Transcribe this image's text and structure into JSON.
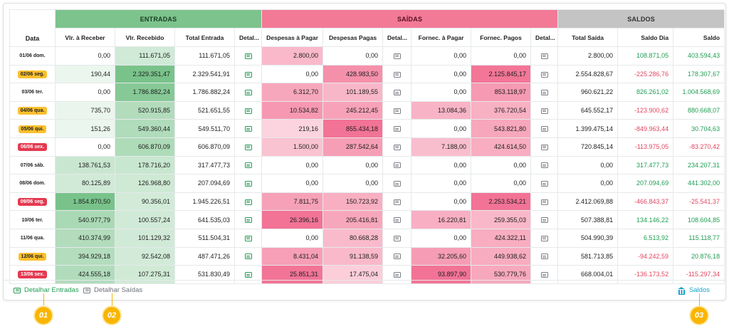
{
  "groups": {
    "entradas": "ENTRADAS",
    "saidas": "SAÍDAS",
    "saldos": "SALDOS"
  },
  "columns": {
    "data": "Data",
    "vlr_receber": "Vlr. à Receber",
    "vlr_recebido": "Vlr. Recebido",
    "total_entrada": "Total Entrada",
    "detal_ent": "Detal...",
    "desp_pagar": "Despesas à Pagar",
    "desp_pagas": "Despesas Pagas",
    "detal_sai": "Detal...",
    "forn_pagar": "Fornec. à Pagar",
    "forn_pagos": "Fornec. Pagos",
    "detal_forn": "Detal...",
    "total_saida": "Total Saída",
    "saldo_dia": "Saldo Dia",
    "saldo": "Saldo"
  },
  "rows": [
    {
      "date": "01/06 dom.",
      "date_style": "plain",
      "vlr_receber": "0,00",
      "vlr_recebido": "111.671,05",
      "total_entrada": "111.671,05",
      "desp_pagar": "2.800,00",
      "desp_pagas": "0,00",
      "forn_pagar": "0,00",
      "forn_pagos": "0,00",
      "total_saida": "2.800,00",
      "saldo_dia": "108.871,05",
      "saldo": "403.594,43",
      "saldo_dia_sign": "pos",
      "saldo_sign": "pos"
    },
    {
      "date": "02/06 seg.",
      "date_style": "yellow",
      "vlr_receber": "190,44",
      "vlr_recebido": "2.329.351,47",
      "total_entrada": "2.329.541,91",
      "desp_pagar": "0,00",
      "desp_pagas": "428.983,50",
      "forn_pagar": "0,00",
      "forn_pagos": "2.125.845,17",
      "total_saida": "2.554.828,67",
      "saldo_dia": "-225.286,76",
      "saldo": "178.307,67",
      "saldo_dia_sign": "neg",
      "saldo_sign": "pos"
    },
    {
      "date": "03/06 ter.",
      "date_style": "plain",
      "vlr_receber": "0,00",
      "vlr_recebido": "1.786.882,24",
      "total_entrada": "1.786.882,24",
      "desp_pagar": "6.312,70",
      "desp_pagas": "101.189,55",
      "forn_pagar": "0,00",
      "forn_pagos": "853.118,97",
      "total_saida": "960.621,22",
      "saldo_dia": "826.261,02",
      "saldo": "1.004.568,69",
      "saldo_dia_sign": "pos",
      "saldo_sign": "pos"
    },
    {
      "date": "04/06 qua.",
      "date_style": "yellow",
      "vlr_receber": "735,70",
      "vlr_recebido": "520.915,85",
      "total_entrada": "521.651,55",
      "desp_pagar": "10.534,82",
      "desp_pagas": "245.212,45",
      "forn_pagar": "13.084,36",
      "forn_pagos": "376.720,54",
      "total_saida": "645.552,17",
      "saldo_dia": "-123.900,62",
      "saldo": "880.668,07",
      "saldo_dia_sign": "neg",
      "saldo_sign": "pos"
    },
    {
      "date": "05/06 qui.",
      "date_style": "yellow",
      "vlr_receber": "151,26",
      "vlr_recebido": "549.360,44",
      "total_entrada": "549.511,70",
      "desp_pagar": "219,16",
      "desp_pagas": "855.434,18",
      "forn_pagar": "0,00",
      "forn_pagos": "543.821,80",
      "total_saida": "1.399.475,14",
      "saldo_dia": "-849.963,44",
      "saldo": "30.704,63",
      "saldo_dia_sign": "neg",
      "saldo_sign": "pos"
    },
    {
      "date": "06/06 sex.",
      "date_style": "red",
      "vlr_receber": "0,00",
      "vlr_recebido": "606.870,09",
      "total_entrada": "606.870,09",
      "desp_pagar": "1.500,00",
      "desp_pagas": "287.542,64",
      "forn_pagar": "7.188,00",
      "forn_pagos": "424.614,50",
      "total_saida": "720.845,14",
      "saldo_dia": "-113.975,05",
      "saldo": "-83.270,42",
      "saldo_dia_sign": "neg",
      "saldo_sign": "neg"
    },
    {
      "date": "07/06 sáb.",
      "date_style": "plain",
      "vlr_receber": "138.761,53",
      "vlr_recebido": "178.716,20",
      "total_entrada": "317.477,73",
      "desp_pagar": "0,00",
      "desp_pagas": "0,00",
      "forn_pagar": "0,00",
      "forn_pagos": "0,00",
      "total_saida": "0,00",
      "saldo_dia": "317.477,73",
      "saldo": "234.207,31",
      "saldo_dia_sign": "pos",
      "saldo_sign": "pos"
    },
    {
      "date": "08/06 dom.",
      "date_style": "plain",
      "vlr_receber": "80.125,89",
      "vlr_recebido": "126.968,80",
      "total_entrada": "207.094,69",
      "desp_pagar": "0,00",
      "desp_pagas": "0,00",
      "forn_pagar": "0,00",
      "forn_pagos": "0,00",
      "total_saida": "0,00",
      "saldo_dia": "207.094,69",
      "saldo": "441.302,00",
      "saldo_dia_sign": "pos",
      "saldo_sign": "pos"
    },
    {
      "date": "09/06 seg.",
      "date_style": "red",
      "vlr_receber": "1.854.870,50",
      "vlr_recebido": "90.356,01",
      "total_entrada": "1.945.226,51",
      "desp_pagar": "7.811,75",
      "desp_pagas": "150.723,92",
      "forn_pagar": "0,00",
      "forn_pagos": "2.253.534,21",
      "total_saida": "2.412.069,88",
      "saldo_dia": "-466.843,37",
      "saldo": "-25.541,37",
      "saldo_dia_sign": "neg",
      "saldo_sign": "neg"
    },
    {
      "date": "10/06 ter.",
      "date_style": "plain",
      "vlr_receber": "540.977,79",
      "vlr_recebido": "100.557,24",
      "total_entrada": "641.535,03",
      "desp_pagar": "26.396,16",
      "desp_pagas": "205.416,81",
      "forn_pagar": "16.220,81",
      "forn_pagos": "259.355,03",
      "total_saida": "507.388,81",
      "saldo_dia": "134.146,22",
      "saldo": "108.604,85",
      "saldo_dia_sign": "pos",
      "saldo_sign": "pos"
    },
    {
      "date": "11/06 qua.",
      "date_style": "plain",
      "vlr_receber": "410.374,99",
      "vlr_recebido": "101.129,32",
      "total_entrada": "511.504,31",
      "desp_pagar": "0,00",
      "desp_pagas": "80.668,28",
      "forn_pagar": "0,00",
      "forn_pagos": "424.322,11",
      "total_saida": "504.990,39",
      "saldo_dia": "6.513,92",
      "saldo": "115.118,77",
      "saldo_dia_sign": "pos",
      "saldo_sign": "pos"
    },
    {
      "date": "12/06 qui.",
      "date_style": "yellow",
      "vlr_receber": "394.929,18",
      "vlr_recebido": "92.542,08",
      "total_entrada": "487.471,26",
      "desp_pagar": "8.431,04",
      "desp_pagas": "91.138,59",
      "forn_pagar": "32.205,60",
      "forn_pagos": "449.938,62",
      "total_saida": "581.713,85",
      "saldo_dia": "-94.242,59",
      "saldo": "20.876,18",
      "saldo_dia_sign": "neg",
      "saldo_sign": "pos"
    },
    {
      "date": "13/06 sex.",
      "date_style": "red",
      "vlr_receber": "424.555,18",
      "vlr_recebido": "107.275,31",
      "total_entrada": "531.830,49",
      "desp_pagar": "25.851,31",
      "desp_pagas": "17.475,04",
      "forn_pagar": "93.897,90",
      "forn_pagos": "530.779,76",
      "total_saida": "668.004,01",
      "saldo_dia": "-136.173,52",
      "saldo": "-115.297,34",
      "saldo_dia_sign": "neg",
      "saldo_sign": "neg"
    }
  ],
  "footer": {
    "detalhar_entradas": "Detalhar Entradas",
    "detalhar_saidas": "Detalhar Saídas",
    "saldos": "Saldos"
  },
  "markers": [
    "01",
    "02",
    "03"
  ],
  "colors": {
    "entradas_header": "#7cc38d",
    "saidas_header": "#f27a97",
    "saldos_header": "#c4c4c4",
    "positive": "#1e9e52",
    "negative": "#e0455e",
    "marker": "#f9b500",
    "saldos_link": "#1aa3c9"
  },
  "icons": {
    "detail": "document-lines-icon",
    "saldos": "bank-icon"
  }
}
